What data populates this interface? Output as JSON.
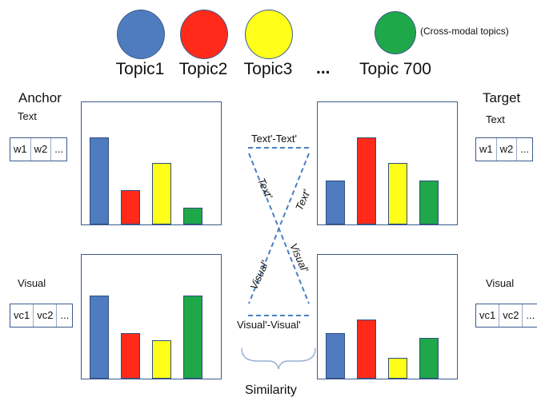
{
  "colors": {
    "blue": "#4f7cbf",
    "red": "#ff2a1a",
    "yellow": "#ffff1a",
    "green": "#1fa84a",
    "frame": "#3b5b8c",
    "dash": "#4a7fc0"
  },
  "legend": {
    "note": "(Cross-modal topics)",
    "topics": [
      {
        "label": "Topic1",
        "color": "#4f7cbf"
      },
      {
        "label": "Topic2",
        "color": "#ff2a1a"
      },
      {
        "label": "Topic3",
        "color": "#ffff1a"
      },
      {
        "label": "Topic 700",
        "color": "#1fa84a"
      }
    ],
    "ellipsis": "..."
  },
  "anchor": {
    "title": "Anchor",
    "text_label": "Text",
    "visual_label": "Visual",
    "text_tokens": [
      "w1",
      "w2",
      "..."
    ],
    "visual_tokens": [
      "vc1",
      "vc2",
      "..."
    ],
    "text_bars": [
      0.71,
      0.28,
      0.5,
      0.14
    ],
    "visual_bars": [
      0.67,
      0.37,
      0.31,
      0.67
    ]
  },
  "target": {
    "title": "Target",
    "text_label": "Text",
    "visual_label": "Visual",
    "text_tokens": [
      "w1",
      "w2",
      "..."
    ],
    "visual_tokens": [
      "vc1",
      "vc2",
      "..."
    ],
    "text_bars": [
      0.36,
      0.71,
      0.5,
      0.36
    ],
    "visual_bars": [
      0.37,
      0.48,
      0.17,
      0.33
    ]
  },
  "center": {
    "text_text": "Text'-Text'",
    "visual_visual": "Visual'-Visual'",
    "cross_text_left": "Text'",
    "cross_text_right": "Text'",
    "cross_visual_left": "Visual'",
    "cross_visual_right": "Visual'",
    "similarity": "Similarity"
  }
}
